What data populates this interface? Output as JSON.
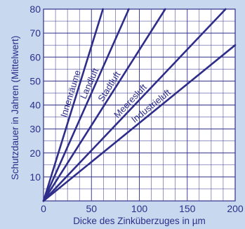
{
  "chart_data": {
    "type": "line",
    "title": "",
    "xlabel": "Dicke des Zinküberzuges in µm",
    "ylabel": "Schutzdauer in Jahren (Mittelwert)",
    "xlim": [
      0,
      200
    ],
    "ylim": [
      0,
      80
    ],
    "x_ticks": [
      0,
      50,
      100,
      150,
      200
    ],
    "y_ticks": [
      10,
      20,
      30,
      40,
      50,
      60,
      70,
      80
    ],
    "grid": true,
    "series": [
      {
        "name": "Innenräume",
        "x": [
          0,
          62
        ],
        "y": [
          0,
          80
        ]
      },
      {
        "name": "Landluft",
        "x": [
          0,
          89
        ],
        "y": [
          0,
          80
        ]
      },
      {
        "name": "Stadtluft",
        "x": [
          0,
          127
        ],
        "y": [
          0,
          80
        ]
      },
      {
        "name": "Meeresluft",
        "x": [
          0,
          190
        ],
        "y": [
          0,
          80
        ]
      },
      {
        "name": "Industrieluft",
        "x": [
          0,
          200
        ],
        "y": [
          0,
          65
        ]
      }
    ]
  },
  "colors": {
    "background": "#c8d8ef",
    "plot_background": "#ffffff",
    "grid": "#2e2e8a",
    "line": "#2e2e8a",
    "text": "#2e2e8a"
  }
}
